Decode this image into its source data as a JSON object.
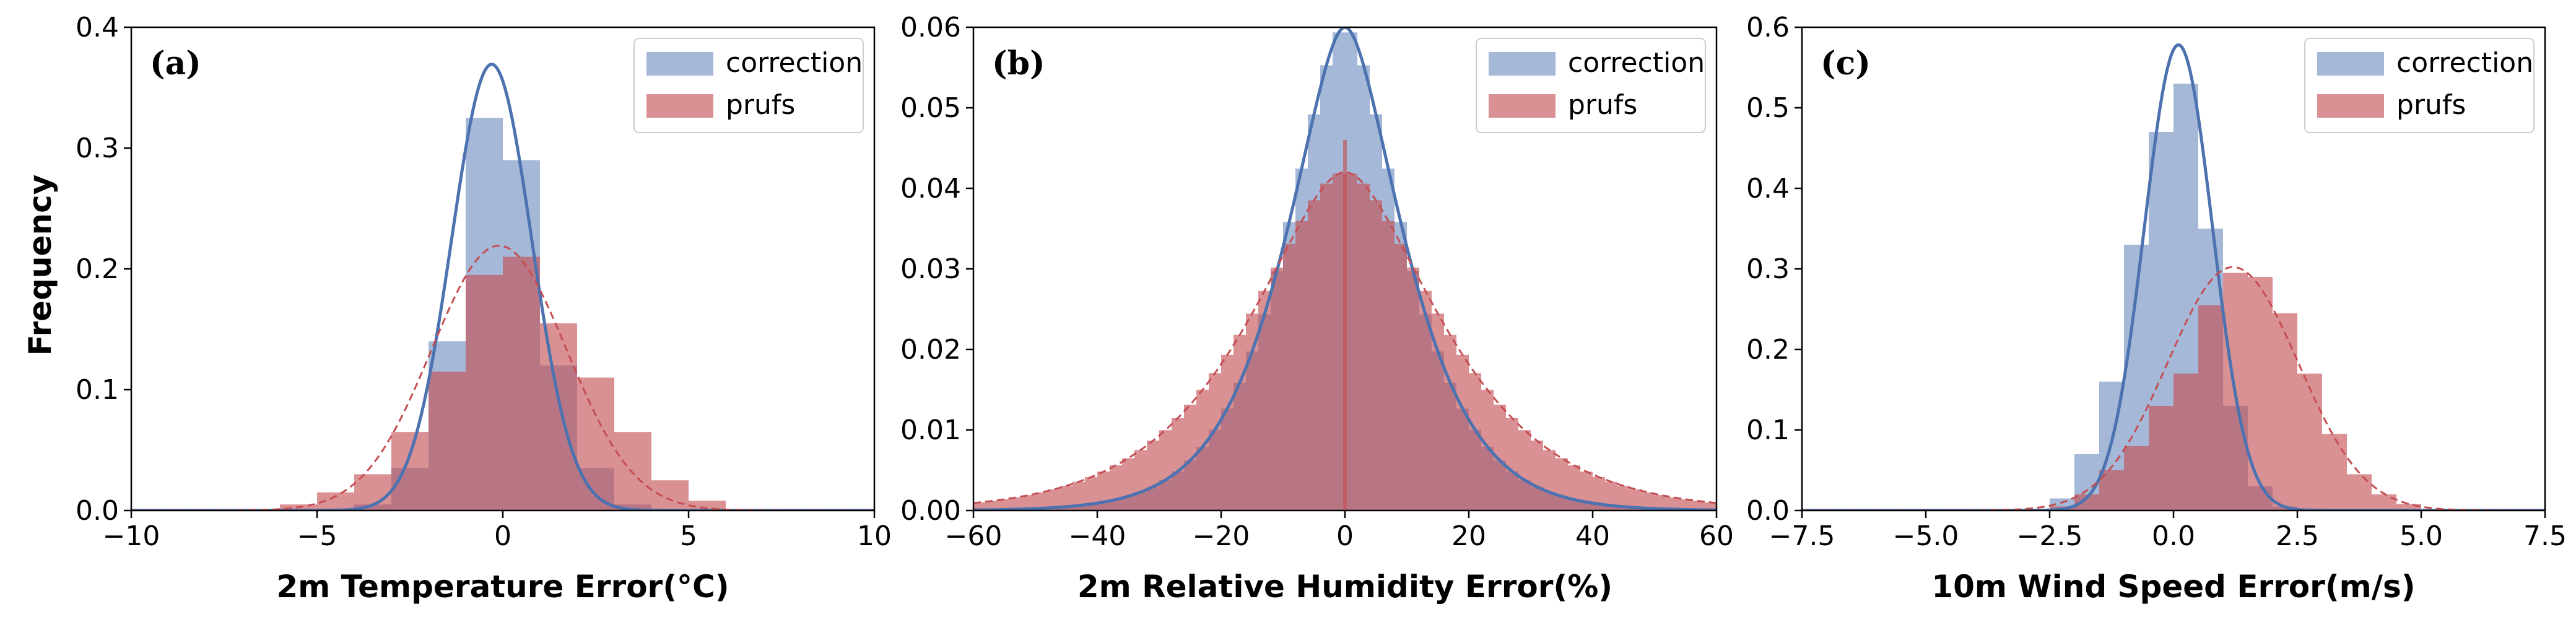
{
  "figure": {
    "ylabel": "Frequency"
  },
  "chart_data": [
    {
      "type": "histogram",
      "panel_label": "(a)",
      "xlabel": "2m Temperature Error(°C)",
      "ylabel": "Frequency",
      "xlim": [
        -10,
        10
      ],
      "ylim": [
        0,
        0.4
      ],
      "xticks": [
        -10,
        -5,
        0,
        5,
        10
      ],
      "xtick_labels": [
        "−10",
        "−5",
        "0",
        "5",
        "10"
      ],
      "yticks": [
        0,
        0.1,
        0.2,
        0.3,
        0.4
      ],
      "ytick_labels": [
        "0.0",
        "0.1",
        "0.2",
        "0.3",
        "0.4"
      ],
      "legend_position": "top-right",
      "series": [
        {
          "name": "correction",
          "color": "#4c72b0",
          "bins": [
            [
              -4,
              -3,
              0.005
            ],
            [
              -3,
              -2,
              0.035
            ],
            [
              -2,
              -1,
              0.14
            ],
            [
              -1,
              0,
              0.325
            ],
            [
              0,
              1,
              0.29
            ],
            [
              1,
              2,
              0.12
            ],
            [
              2,
              3,
              0.035
            ],
            [
              3,
              4,
              0.005
            ]
          ],
          "fit": {
            "kind": "normal",
            "mean": -0.3,
            "sd": 1.08,
            "line_style": "solid"
          }
        },
        {
          "name": "prufs",
          "color": "#c44e52",
          "bins": [
            [
              -6,
              -5,
              0.005
            ],
            [
              -5,
              -4,
              0.015
            ],
            [
              -4,
              -3,
              0.03
            ],
            [
              -3,
              -2,
              0.065
            ],
            [
              -2,
              -1,
              0.115
            ],
            [
              -1,
              0,
              0.195
            ],
            [
              0,
              1,
              0.21
            ],
            [
              1,
              2,
              0.155
            ],
            [
              2,
              3,
              0.11
            ],
            [
              3,
              4,
              0.065
            ],
            [
              4,
              5,
              0.025
            ],
            [
              5,
              6,
              0.008
            ]
          ],
          "fit": {
            "kind": "normal",
            "mean": -0.1,
            "sd": 1.82,
            "line_style": "dashed"
          }
        }
      ]
    },
    {
      "type": "histogram",
      "panel_label": "(b)",
      "xlabel": "2m Relative Humidity Error(%)",
      "xlim": [
        -60,
        60
      ],
      "ylim": [
        0,
        0.06
      ],
      "xticks": [
        -60,
        -40,
        -20,
        0,
        20,
        40,
        60
      ],
      "xtick_labels": [
        "−60",
        "−40",
        "−20",
        "0",
        "20",
        "40",
        "60"
      ],
      "yticks": [
        0,
        0.01,
        0.02,
        0.03,
        0.04,
        0.05,
        0.06
      ],
      "ytick_labels": [
        "0.00",
        "0.01",
        "0.02",
        "0.03",
        "0.04",
        "0.05",
        "0.06"
      ],
      "legend_position": "top-right",
      "series": [
        {
          "name": "correction",
          "color": "#4c72b0",
          "fit": {
            "kind": "laplace-like",
            "center": 0,
            "peak": 0.06,
            "scale": 6.5,
            "line_style": "solid"
          },
          "hist_follows_fit": true
        },
        {
          "name": "prufs",
          "color": "#c44e52",
          "fit": {
            "kind": "laplace-like",
            "center": 0,
            "peak": 0.042,
            "scale": 10.5,
            "line_style": "dashed"
          },
          "hist_follows_fit": true,
          "spike": {
            "x": 0,
            "value": 0.046
          }
        }
      ]
    },
    {
      "type": "histogram",
      "panel_label": "(c)",
      "xlabel": "10m Wind Speed Error(m/s)",
      "xlim": [
        -7.5,
        7.5
      ],
      "ylim": [
        0,
        0.6
      ],
      "xticks": [
        -7.5,
        -5,
        -2.5,
        0,
        2.5,
        5,
        7.5
      ],
      "xtick_labels": [
        "−7.5",
        "−5.0",
        "−2.5",
        "0.0",
        "2.5",
        "5.0",
        "7.5"
      ],
      "yticks": [
        0,
        0.1,
        0.2,
        0.3,
        0.4,
        0.5,
        0.6
      ],
      "ytick_labels": [
        "0.0",
        "0.1",
        "0.2",
        "0.3",
        "0.4",
        "0.5",
        "0.6"
      ],
      "legend_position": "top-right",
      "series": [
        {
          "name": "correction",
          "color": "#4c72b0",
          "bins": [
            [
              -2.5,
              -2,
              0.015
            ],
            [
              -2,
              -1.5,
              0.07
            ],
            [
              -1.5,
              -1,
              0.16
            ],
            [
              -1,
              -0.5,
              0.33
            ],
            [
              -0.5,
              0,
              0.47
            ],
            [
              0,
              0.5,
              0.53
            ],
            [
              0.5,
              1,
              0.35
            ],
            [
              1,
              1.5,
              0.13
            ],
            [
              1.5,
              2,
              0.03
            ],
            [
              2,
              2.5,
              0.005
            ]
          ],
          "fit": {
            "kind": "normal",
            "mean": 0.1,
            "sd": 0.69,
            "line_style": "solid"
          }
        },
        {
          "name": "prufs",
          "color": "#c44e52",
          "bins": [
            [
              -2.5,
              -2,
              0.005
            ],
            [
              -2,
              -1.5,
              0.02
            ],
            [
              -1.5,
              -1,
              0.05
            ],
            [
              -1,
              -0.5,
              0.08
            ],
            [
              -0.5,
              0,
              0.13
            ],
            [
              0,
              0.5,
              0.17
            ],
            [
              0.5,
              1,
              0.255
            ],
            [
              1,
              1.5,
              0.295
            ],
            [
              1.5,
              2,
              0.29
            ],
            [
              2,
              2.5,
              0.245
            ],
            [
              2.5,
              3,
              0.17
            ],
            [
              3,
              3.5,
              0.095
            ],
            [
              3.5,
              4,
              0.045
            ],
            [
              4,
              4.5,
              0.02
            ],
            [
              4.5,
              5,
              0.008
            ]
          ],
          "fit": {
            "kind": "normal",
            "mean": 1.2,
            "sd": 1.32,
            "line_style": "dashed"
          }
        }
      ]
    }
  ]
}
